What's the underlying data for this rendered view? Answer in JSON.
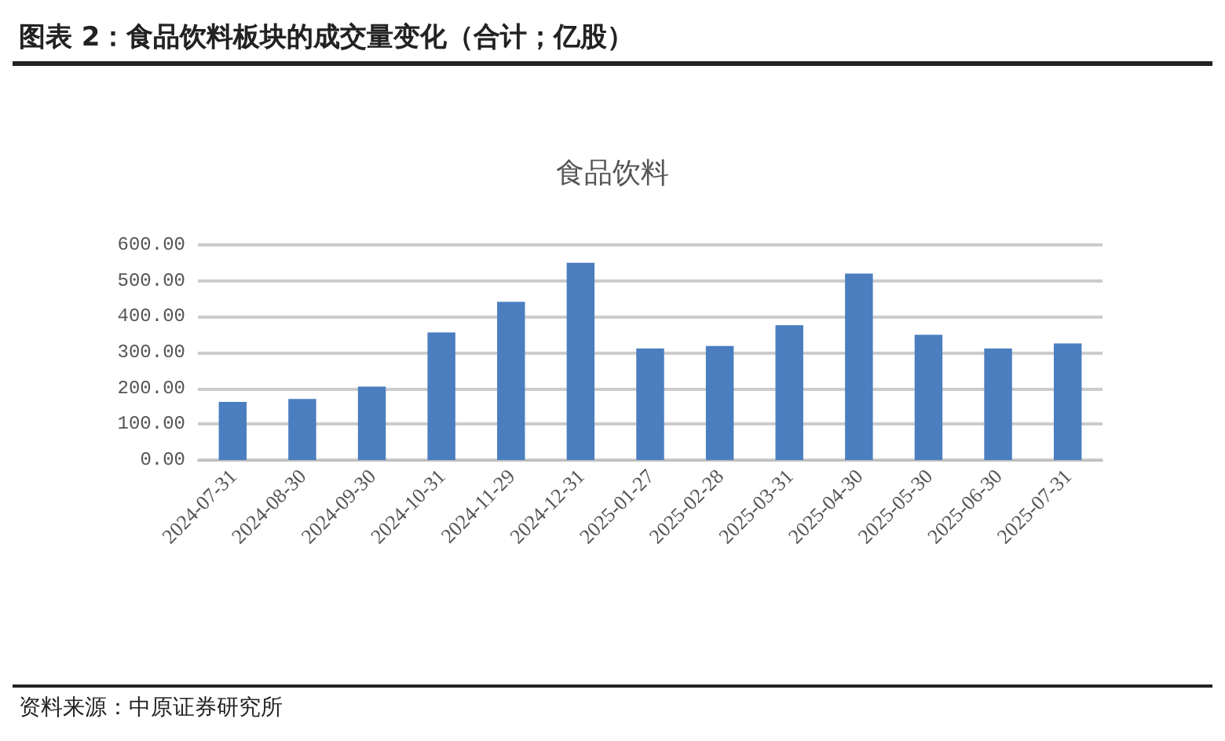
{
  "chart_data": {
    "type": "bar",
    "title": "图表 2：食品饮料板块的成交量变化（合计；亿股）",
    "subtitle": "食品饮料",
    "categories": [
      "2024-07-31",
      "2024-08-30",
      "2024-09-30",
      "2024-10-31",
      "2024-11-29",
      "2024-12-31",
      "2025-01-27",
      "2025-02-28",
      "2025-03-31",
      "2025-04-30",
      "2025-05-30",
      "2025-06-30",
      "2025-07-31"
    ],
    "values": [
      162,
      170,
      205,
      356,
      441,
      550,
      311,
      318,
      376,
      520,
      349,
      311,
      325
    ],
    "color": "#4a7ebf",
    "ylim": [
      0,
      600
    ],
    "yticks": [
      {
        "value": 0,
        "label": "0.00"
      },
      {
        "value": 100,
        "label": "100.00"
      },
      {
        "value": 200,
        "label": "200.00"
      },
      {
        "value": 300,
        "label": "300.00"
      },
      {
        "value": 400,
        "label": "400.00"
      },
      {
        "value": 500,
        "label": "500.00"
      },
      {
        "value": 600,
        "label": "600.00"
      }
    ],
    "grid": "y",
    "annotations": [
      "资料来源：中原证券研究所"
    ]
  }
}
